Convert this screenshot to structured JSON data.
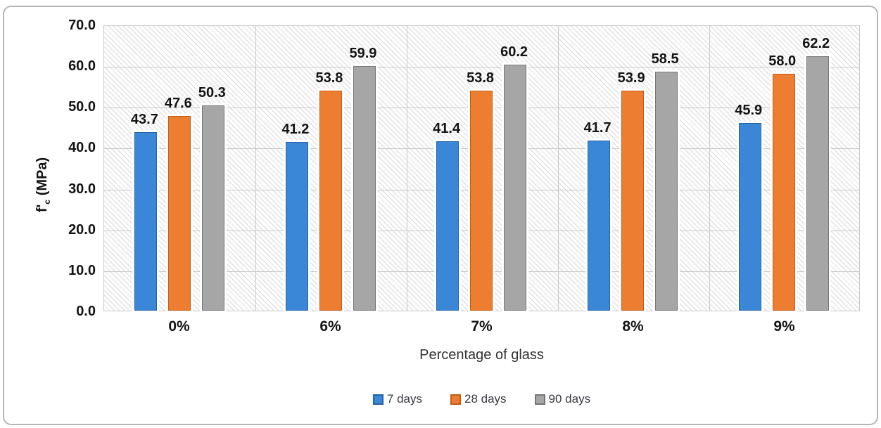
{
  "chart_data": {
    "type": "bar",
    "title": "",
    "categories": [
      "0%",
      "6%",
      "7%",
      "8%",
      "9%"
    ],
    "series": [
      {
        "name": "7 days",
        "color": "#3a87d8",
        "border_color": "#2563a8",
        "values": [
          43.7,
          41.2,
          41.4,
          41.7,
          45.9
        ]
      },
      {
        "name": "28 days",
        "color": "#ed7d31",
        "border_color": "#c55a11",
        "values": [
          47.6,
          53.8,
          53.8,
          53.9,
          58.0
        ]
      },
      {
        "name": "90 days",
        "color": "#a6a6a6",
        "border_color": "#767676",
        "values": [
          50.3,
          59.9,
          60.2,
          58.5,
          62.2
        ]
      }
    ],
    "xlabel": "Percentage of glass",
    "ylabel_parts": {
      "prefix": "f'",
      "sub": "c",
      "suffix": " (MPa)"
    },
    "ylim": [
      0,
      70
    ],
    "ytick_step": 10,
    "ytick_decimals": 1,
    "data_label_decimals": 1,
    "grid": true,
    "legend_position": "bottom",
    "plot_background": "diagonal-hatch"
  }
}
